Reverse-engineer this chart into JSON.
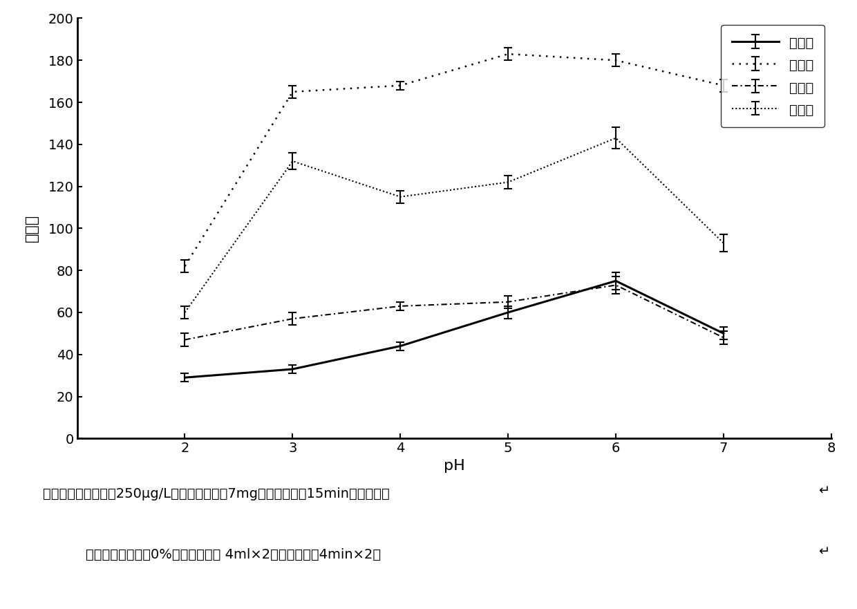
{
  "x": [
    2,
    3,
    4,
    5,
    6,
    7
  ],
  "series_order": [
    "多菌灵",
    "三唑酮",
    "溴虫腈",
    "唑螨酯"
  ],
  "series": {
    "多菌灵": {
      "y": [
        29,
        33,
        44,
        60,
        75,
        50
      ],
      "yerr": [
        2,
        2,
        2,
        3,
        4,
        3
      ]
    },
    "三唑酮": {
      "y": [
        82,
        165,
        168,
        183,
        180,
        168
      ],
      "yerr": [
        3,
        3,
        2,
        3,
        3,
        3
      ]
    },
    "溴虫腈": {
      "y": [
        47,
        57,
        63,
        65,
        73,
        48
      ],
      "yerr": [
        3,
        3,
        2,
        3,
        4,
        3
      ]
    },
    "唑螨酯": {
      "y": [
        60,
        132,
        115,
        122,
        143,
        93
      ],
      "yerr": [
        3,
        4,
        3,
        3,
        5,
        4
      ]
    }
  },
  "xlabel": "pH",
  "ylabel": "峰面积",
  "xlim": [
    1,
    8
  ],
  "ylim": [
    0,
    200
  ],
  "xticks": [
    2,
    3,
    4,
    5,
    6,
    7,
    8
  ],
  "yticks": [
    0,
    20,
    40,
    60,
    80,
    100,
    120,
    140,
    160,
    180,
    200
  ],
  "caption_line1": "（萝取条件：浓度：250μg/L；吸附剂用量：7mg；萝取时间：15min；洗脱剂：",
  "caption_line2": "乙酸乙酩；盐度：0%；洗脱剂用量 4ml×2；解吸时间：4min×2）",
  "background_color": "#ffffff"
}
